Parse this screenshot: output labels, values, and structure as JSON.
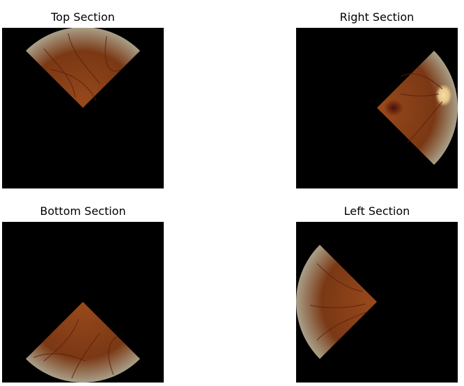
{
  "panels": [
    {
      "id": "top",
      "title": "Top Section"
    },
    {
      "id": "right",
      "title": "Right Section"
    },
    {
      "id": "bottom",
      "title": "Bottom Section"
    },
    {
      "id": "left",
      "title": "Left Section"
    }
  ],
  "colors": {
    "background": "#000000",
    "retina_center": "#9a4a1c",
    "retina_mid": "#7a3814",
    "retina_edge": "#a9a089",
    "vessel": "#5e1e0e",
    "optic_disc": "#e8c78a",
    "macula": "#4a0f08"
  }
}
